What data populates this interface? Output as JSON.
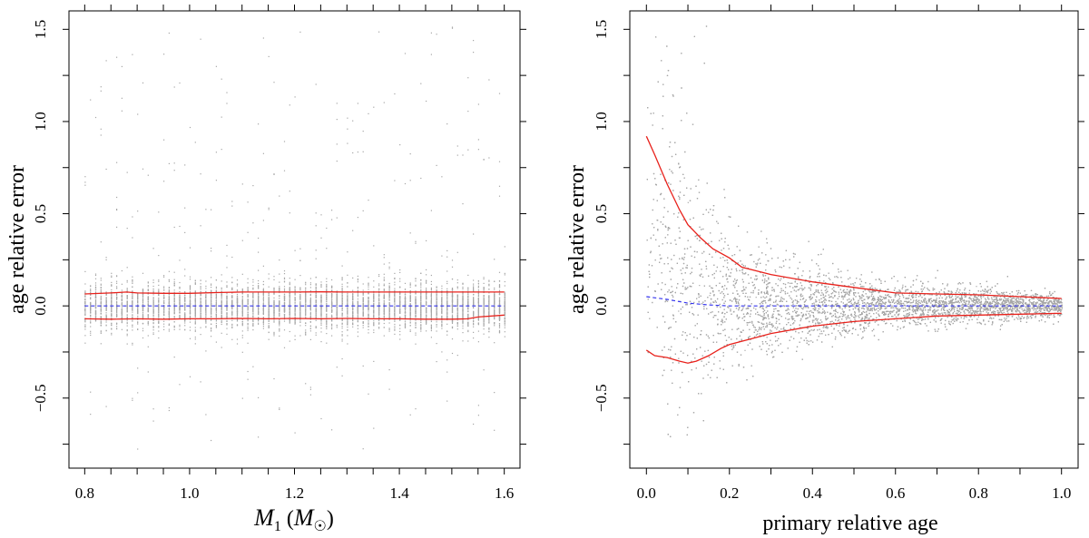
{
  "chart_data": [
    {
      "type": "scatter",
      "xlabel": "M",
      "xlabel_subscript": "1",
      "xlabel_unit_open": " (",
      "xlabel_unit": "M",
      "xlabel_unit_sub": "☉",
      "xlabel_unit_close": ")",
      "ylabel": "age relative error",
      "xlim": [
        0.77,
        1.63
      ],
      "ylim": [
        -0.88,
        1.6
      ],
      "xticks": [
        0.8,
        0.85,
        0.9,
        0.95,
        1.0,
        1.05,
        1.1,
        1.15,
        1.2,
        1.25,
        1.3,
        1.35,
        1.4,
        1.45,
        1.5,
        1.55,
        1.6
      ],
      "xtick_labels": [
        "0.8",
        "1.0",
        "1.2",
        "1.4",
        "1.6"
      ],
      "xtick_label_values": [
        0.8,
        1.0,
        1.2,
        1.4,
        1.6
      ],
      "yticks": [
        -0.75,
        -0.5,
        -0.25,
        0.0,
        0.25,
        0.5,
        0.75,
        1.0,
        1.25,
        1.5
      ],
      "ytick_labels": [
        "−0.5",
        "0.0",
        "0.5",
        "1.0",
        "1.5"
      ],
      "ytick_label_values": [
        -0.5,
        0.0,
        0.5,
        1.0,
        1.5
      ],
      "grid": false,
      "point_distribution": {
        "x_min": 0.8,
        "x_max": 1.6,
        "x_step": 0.01,
        "core_sd": 0.06,
        "tail_min": -0.78,
        "tail_max": 1.55
      },
      "series": [
        {
          "style": "dashed-blue",
          "x": [
            0.8,
            1.6
          ],
          "y": [
            0.0,
            0.0
          ]
        },
        {
          "style": "solid-red",
          "x": [
            0.8,
            0.85,
            0.88,
            0.9,
            0.95,
            1.0,
            1.05,
            1.1,
            1.15,
            1.2,
            1.25,
            1.3,
            1.35,
            1.4,
            1.45,
            1.5,
            1.55,
            1.6
          ],
          "y": [
            0.065,
            0.07,
            0.075,
            0.07,
            0.068,
            0.068,
            0.072,
            0.075,
            0.075,
            0.075,
            0.076,
            0.075,
            0.075,
            0.075,
            0.075,
            0.075,
            0.075,
            0.075
          ]
        },
        {
          "style": "solid-red",
          "x": [
            0.8,
            0.85,
            0.9,
            0.95,
            1.0,
            1.05,
            1.1,
            1.15,
            1.2,
            1.25,
            1.3,
            1.35,
            1.4,
            1.45,
            1.5,
            1.53,
            1.55,
            1.6
          ],
          "y": [
            -0.07,
            -0.072,
            -0.07,
            -0.072,
            -0.07,
            -0.07,
            -0.068,
            -0.07,
            -0.068,
            -0.07,
            -0.068,
            -0.07,
            -0.07,
            -0.072,
            -0.072,
            -0.07,
            -0.06,
            -0.05
          ]
        }
      ]
    },
    {
      "type": "scatter",
      "xlabel": "primary relative age",
      "ylabel": "age relative error",
      "xlim": [
        -0.04,
        1.04
      ],
      "ylim": [
        -0.88,
        1.6
      ],
      "xticks": [
        0.0,
        0.1,
        0.2,
        0.3,
        0.4,
        0.5,
        0.6,
        0.7,
        0.8,
        0.9,
        1.0
      ],
      "xtick_labels": [
        "0.0",
        "0.2",
        "0.4",
        "0.6",
        "0.8",
        "1.0"
      ],
      "xtick_label_values": [
        0.0,
        0.2,
        0.4,
        0.6,
        0.8,
        1.0
      ],
      "yticks": [
        -0.75,
        -0.5,
        -0.25,
        0.0,
        0.25,
        0.5,
        0.75,
        1.0,
        1.25,
        1.5
      ],
      "ytick_labels": [
        "−0.5",
        "0.0",
        "0.5",
        "1.0",
        "1.5"
      ],
      "ytick_label_values": [
        -0.5,
        0.0,
        0.5,
        1.0,
        1.5
      ],
      "grid": false,
      "series": [
        {
          "style": "dashed-blue",
          "x": [
            0.0,
            0.05,
            0.1,
            0.15,
            0.2,
            0.3,
            0.4,
            0.6,
            0.8,
            1.0
          ],
          "y": [
            0.05,
            0.035,
            0.015,
            0.005,
            0.0,
            0.0,
            0.0,
            0.0,
            0.0,
            0.0
          ]
        },
        {
          "style": "solid-red",
          "x": [
            0.0,
            0.02,
            0.05,
            0.08,
            0.1,
            0.13,
            0.16,
            0.2,
            0.23,
            0.3,
            0.4,
            0.5,
            0.6,
            0.7,
            0.8,
            0.9,
            1.0
          ],
          "y": [
            0.92,
            0.82,
            0.66,
            0.52,
            0.44,
            0.37,
            0.31,
            0.26,
            0.21,
            0.17,
            0.13,
            0.1,
            0.07,
            0.065,
            0.06,
            0.05,
            0.04
          ]
        },
        {
          "style": "solid-red",
          "x": [
            0.0,
            0.02,
            0.05,
            0.08,
            0.1,
            0.12,
            0.15,
            0.18,
            0.2,
            0.25,
            0.3,
            0.4,
            0.5,
            0.6,
            0.7,
            0.8,
            0.9,
            1.0
          ],
          "y": [
            -0.24,
            -0.27,
            -0.28,
            -0.3,
            -0.31,
            -0.3,
            -0.27,
            -0.23,
            -0.21,
            -0.18,
            -0.15,
            -0.11,
            -0.085,
            -0.07,
            -0.055,
            -0.05,
            -0.045,
            -0.04
          ]
        }
      ]
    }
  ]
}
